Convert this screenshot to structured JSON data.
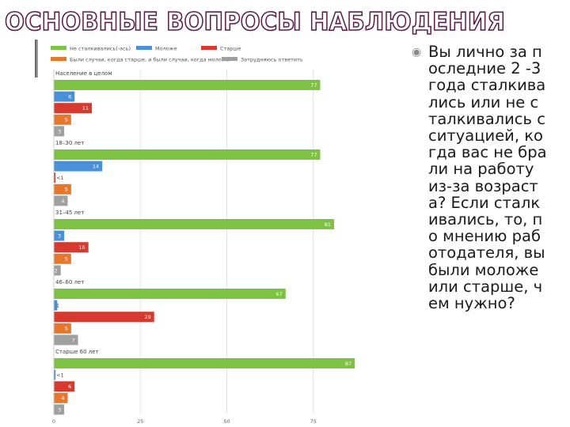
{
  "slide": {
    "title": "ОСНОВНЫЕ ВОПРОСЫ НАБЛЮДЕНИЯ",
    "accent_color": "#5b1a4a",
    "bullet_icon": "circle-bullet-icon",
    "bullet_glyph": "◉",
    "bullet_text": "Вы лично за последние 2 -3 года сталкивались или не сталкивались с ситуацией, когда вас не брали на работу из-за возраста? Если сталкивались, то, по мнению работодателя, вы были моложе или старше, чем нужно?"
  },
  "chart_data": {
    "type": "bar",
    "orientation": "horizontal",
    "xlim": [
      0,
      100
    ],
    "xticks": [
      0,
      25,
      50,
      75
    ],
    "legend_position": "top",
    "legend": [
      {
        "name": "Не сталкивались(-ась)",
        "color": "#7dc242"
      },
      {
        "name": "Моложе",
        "color": "#4a90d9"
      },
      {
        "name": "Старше",
        "color": "#d63a2f"
      },
      {
        "name": "Были случаи, когда старше, и были случаи, когда моложе",
        "color": "#e8772e"
      },
      {
        "name": "Затрудняюсь ответить",
        "color": "#a0a0a0"
      }
    ],
    "groups": [
      {
        "label": "Население в целом",
        "values": [
          77,
          6,
          11,
          5,
          3
        ],
        "labels": [
          "77",
          "6",
          "11",
          "5",
          "3"
        ]
      },
      {
        "label": "18–30 лет",
        "values": [
          77,
          14,
          0.5,
          5,
          4
        ],
        "labels": [
          "77",
          "14",
          "<1",
          "5",
          "4"
        ]
      },
      {
        "label": "31–45 лет",
        "values": [
          81,
          3,
          10,
          5,
          2
        ],
        "labels": [
          "81",
          "3",
          "10",
          "5",
          "2"
        ]
      },
      {
        "label": "46–60 лет",
        "values": [
          67,
          1,
          29,
          5,
          7
        ],
        "labels": [
          "67",
          "1",
          "29",
          "5",
          "7"
        ]
      },
      {
        "label": "Старше 60 лет",
        "values": [
          87,
          0.5,
          6,
          4,
          3
        ],
        "labels": [
          "87",
          "<1",
          "6",
          "4",
          "3"
        ]
      }
    ]
  }
}
